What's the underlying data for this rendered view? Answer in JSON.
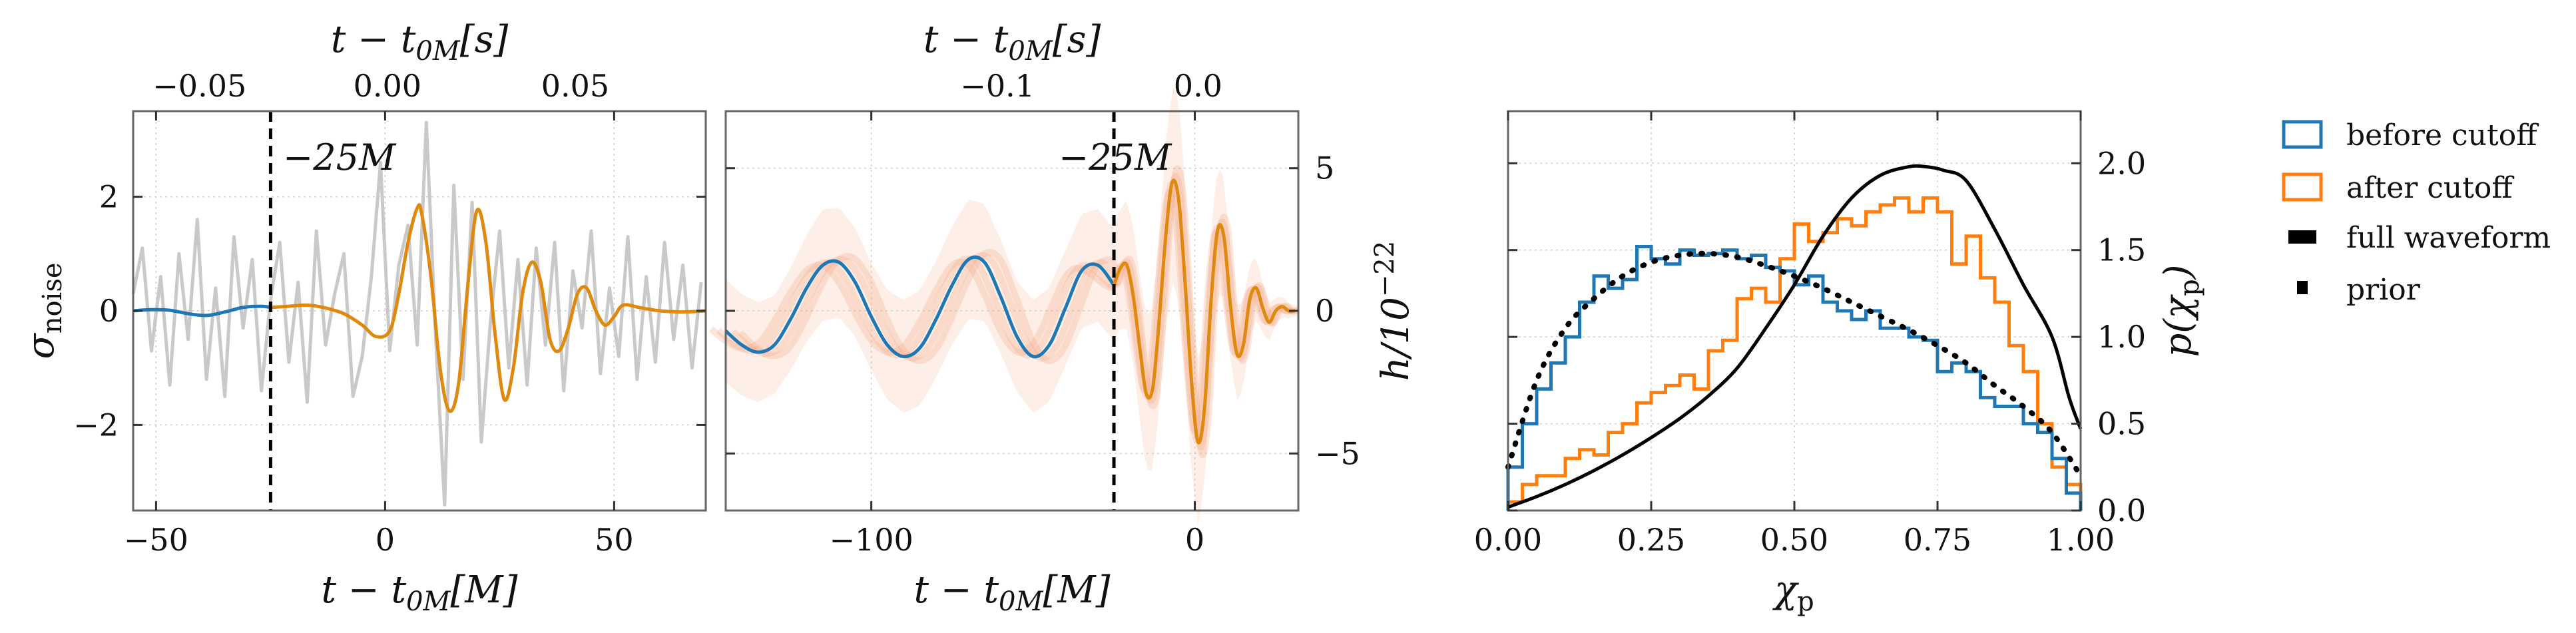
{
  "colors": {
    "before": "#1f77b4",
    "after": "#ff7f0e",
    "after_dark": "#df8a0f",
    "noise": "#c9c9c9",
    "posterior": "#f4a582",
    "full": "#000000",
    "prior": "#000000",
    "grid": "#cfcfcf"
  },
  "legend": {
    "before_label": "before cutoff",
    "after_label": "after cutoff",
    "full_label": "full waveform",
    "prior_label": "prior"
  },
  "panels": {
    "left": {
      "xlabel_main": "t − t",
      "xlabel_sub": "0M",
      "xlabel_unit": "[M]",
      "toplabel_main": "t − t",
      "toplabel_sub": "0M",
      "toplabel_unit": "[s]",
      "ylabel_main": "σ",
      "ylabel_sub": "noise",
      "annotation": "−25M",
      "xticks": [
        "−50",
        "0",
        "50"
      ],
      "yticks": [
        "−2",
        "0",
        "2"
      ],
      "topticks": [
        "−0.05",
        "0.00",
        "0.05"
      ]
    },
    "middle": {
      "xlabel_main": "t − t",
      "xlabel_sub": "0M",
      "xlabel_unit": "[M]",
      "toplabel_main": "t − t",
      "toplabel_sub": "0M",
      "toplabel_unit": "[s]",
      "ylabel_main": "h/10",
      "ylabel_sup": "−22",
      "annotation": "−25M",
      "xticks": [
        "−100",
        "0"
      ],
      "yticks": [
        "−5",
        "0",
        "5"
      ],
      "topticks": [
        "−0.1",
        "0.0"
      ]
    },
    "right": {
      "xlabel_main": "χ",
      "xlabel_sub": "p",
      "ylabel_main": "p(χ",
      "ylabel_sub": "p",
      "ylabel_end": ")",
      "xticks": [
        "0.00",
        "0.25",
        "0.50",
        "0.75",
        "1.00"
      ],
      "yticks": [
        "0.0",
        "0.5",
        "1.0",
        "1.5",
        "2.0"
      ]
    }
  },
  "chart_data": [
    {
      "type": "line",
      "xlim": [
        -55,
        70
      ],
      "ylim": [
        -3.5,
        3.5
      ],
      "top_axis": {
        "ticks_M": [
          -40.5,
          0.5,
          41.5
        ],
        "labels_s": [
          -0.05,
          0.0,
          0.05
        ]
      },
      "cutoff_x": -25,
      "grid": true,
      "series": [
        {
          "key": "noise",
          "x": [
            -55,
            -53,
            -51,
            -49,
            -47,
            -45,
            -43,
            -41,
            -39,
            -37,
            -35,
            -33,
            -31,
            -29,
            -27,
            -25,
            -23,
            -21,
            -19,
            -17,
            -15,
            -13,
            -11,
            -9,
            -7,
            -5,
            -3,
            -1,
            1,
            3,
            5,
            7,
            9,
            11,
            13,
            15,
            17,
            19,
            21,
            23,
            25,
            27,
            29,
            31,
            33,
            35,
            37,
            39,
            41,
            43,
            45,
            47,
            49,
            51,
            53,
            55,
            57,
            59,
            61,
            63,
            65,
            67,
            69
          ],
          "values": [
            0.3,
            1.1,
            -0.7,
            0.6,
            -1.3,
            1.0,
            -0.5,
            1.6,
            -1.2,
            0.4,
            -1.5,
            1.3,
            -0.3,
            0.9,
            -1.4,
            0.2,
            1.2,
            -0.9,
            0.5,
            -1.6,
            1.4,
            -0.6,
            0.3,
            1.0,
            -1.5,
            -0.8,
            0.6,
            2.6,
            -0.7,
            0.8,
            1.5,
            -0.6,
            3.3,
            -0.4,
            -3.4,
            2.2,
            -1.2,
            1.9,
            -2.3,
            -0.2,
            1.4,
            -1.0,
            0.9,
            -1.3,
            1.1,
            -0.6,
            1.2,
            -1.4,
            0.7,
            -0.3,
            1.4,
            -1.1,
            0.4,
            -0.8,
            1.3,
            -1.2,
            0.6,
            -0.9,
            1.2,
            -0.5,
            0.8,
            -1.0,
            0.5
          ]
        },
        {
          "key": "before",
          "x": [
            -55,
            -51,
            -47,
            -43,
            -39,
            -35,
            -31,
            -27,
            -25
          ],
          "values": [
            0.0,
            0.02,
            0.01,
            -0.05,
            -0.08,
            -0.02,
            0.06,
            0.08,
            0.06
          ]
        },
        {
          "key": "after",
          "x": [
            -25,
            -21,
            -17,
            -13,
            -9,
            -5,
            -2,
            1,
            3,
            5,
            7,
            8,
            10,
            12,
            14,
            16,
            18,
            20,
            22,
            24,
            26,
            28,
            30,
            32,
            34,
            36,
            38,
            40,
            42,
            44,
            46,
            48,
            50,
            52,
            56,
            60,
            65,
            70
          ],
          "values": [
            0.06,
            0.08,
            0.1,
            0.05,
            -0.05,
            -0.25,
            -0.45,
            -0.35,
            0.3,
            1.2,
            1.8,
            1.7,
            0.6,
            -1.0,
            -1.75,
            -1.3,
            0.4,
            1.75,
            1.2,
            -0.4,
            -1.55,
            -1.0,
            0.3,
            0.85,
            0.5,
            -0.5,
            -0.7,
            -0.3,
            0.3,
            0.4,
            0.0,
            -0.25,
            -0.1,
            0.1,
            0.05,
            0.0,
            -0.02,
            0.0
          ]
        }
      ]
    },
    {
      "type": "line",
      "xlim": [
        -145,
        32
      ],
      "ylim": [
        -7,
        7
      ],
      "top_axis": {
        "ticks_M": [
          -61,
          1
        ],
        "labels_s": [
          -0.1,
          0.0
        ]
      },
      "cutoff_x": -25,
      "grid": true,
      "series": [
        {
          "key": "before",
          "x": [
            -145,
            -140,
            -135,
            -130,
            -125,
            -120,
            -115,
            -110,
            -105,
            -100,
            -95,
            -90,
            -85,
            -80,
            -75,
            -70,
            -65,
            -60,
            -55,
            -50,
            -45,
            -40,
            -35,
            -30,
            -25
          ],
          "values": [
            -0.7,
            -1.2,
            -1.45,
            -1.2,
            -0.3,
            0.8,
            1.6,
            1.7,
            1.0,
            -0.2,
            -1.2,
            -1.6,
            -1.3,
            -0.3,
            0.9,
            1.8,
            1.7,
            0.5,
            -0.9,
            -1.6,
            -1.2,
            0.1,
            1.4,
            1.6,
            0.9
          ]
        },
        {
          "key": "after",
          "x": [
            -25,
            -23,
            -21,
            -19,
            -17,
            -15,
            -13,
            -11,
            -9,
            -7,
            -5,
            -3,
            -1,
            1,
            3,
            5,
            7,
            9,
            11,
            13,
            15,
            17,
            19,
            21,
            23,
            25,
            27,
            29,
            31
          ],
          "values": [
            0.9,
            1.5,
            1.6,
            0.5,
            -1.3,
            -2.9,
            -2.7,
            -0.3,
            2.6,
            4.5,
            3.9,
            1.0,
            -2.5,
            -4.6,
            -3.4,
            0.3,
            2.8,
            2.6,
            0.2,
            -1.5,
            -1.2,
            0.4,
            0.8,
            0.1,
            -0.4,
            0.0,
            0.15,
            0.0,
            0.0
          ]
        },
        {
          "key": "posterior_envelope",
          "x": [
            -145,
            -130,
            -115,
            -100,
            -85,
            -70,
            -55,
            -40,
            -25,
            -15,
            -5,
            5,
            15,
            25,
            32
          ],
          "values": [
            2.4,
            2.3,
            2.6,
            2.5,
            2.7,
            2.8,
            2.6,
            2.7,
            2.6,
            3.6,
            4.8,
            3.3,
            2.0,
            0.6,
            0.2
          ]
        }
      ]
    },
    {
      "type": "bar",
      "xlim": [
        0.0,
        1.0
      ],
      "ylim": [
        0.0,
        2.3
      ],
      "xlabel": "χp",
      "ylabel": "p(χp)",
      "bin_width": 0.025,
      "series": [
        {
          "name": "before cutoff",
          "key": "before",
          "values": [
            0.25,
            0.5,
            0.7,
            0.85,
            1.0,
            1.2,
            1.35,
            1.28,
            1.33,
            1.52,
            1.45,
            1.42,
            1.5,
            1.47,
            1.48,
            1.5,
            1.45,
            1.47,
            1.4,
            1.38,
            1.3,
            1.35,
            1.2,
            1.15,
            1.1,
            1.15,
            1.05,
            1.05,
            1.0,
            0.98,
            0.8,
            0.85,
            0.8,
            0.65,
            0.6,
            0.6,
            0.5,
            0.45,
            0.3,
            0.1
          ]
        },
        {
          "name": "after cutoff",
          "key": "after",
          "values": [
            0.05,
            0.15,
            0.2,
            0.2,
            0.3,
            0.35,
            0.32,
            0.45,
            0.5,
            0.62,
            0.68,
            0.72,
            0.78,
            0.7,
            0.92,
            0.98,
            1.22,
            1.28,
            1.2,
            1.45,
            1.65,
            1.55,
            1.6,
            1.68,
            1.64,
            1.72,
            1.76,
            1.8,
            1.72,
            1.8,
            1.72,
            1.42,
            1.58,
            1.34,
            1.2,
            0.95,
            0.8,
            0.5,
            0.25,
            0.15
          ]
        },
        {
          "name": "full waveform",
          "key": "full",
          "x": [
            0.0,
            0.05,
            0.1,
            0.15,
            0.2,
            0.25,
            0.3,
            0.35,
            0.4,
            0.45,
            0.5,
            0.55,
            0.6,
            0.65,
            0.7,
            0.73,
            0.76,
            0.8,
            0.85,
            0.9,
            0.95,
            0.98,
            1.0
          ],
          "values": [
            0.02,
            0.08,
            0.15,
            0.23,
            0.32,
            0.42,
            0.53,
            0.66,
            0.82,
            1.05,
            1.3,
            1.58,
            1.8,
            1.93,
            1.98,
            1.98,
            1.96,
            1.9,
            1.62,
            1.3,
            1.0,
            0.65,
            0.47
          ]
        },
        {
          "name": "prior",
          "key": "prior",
          "x": [
            0.0,
            0.05,
            0.1,
            0.15,
            0.2,
            0.25,
            0.3,
            0.35,
            0.4,
            0.45,
            0.5,
            0.55,
            0.6,
            0.65,
            0.7,
            0.75,
            0.8,
            0.85,
            0.9,
            0.95,
            1.0
          ],
          "values": [
            0.25,
            0.75,
            1.05,
            1.22,
            1.35,
            1.43,
            1.47,
            1.48,
            1.46,
            1.41,
            1.35,
            1.28,
            1.2,
            1.12,
            1.04,
            0.95,
            0.85,
            0.72,
            0.6,
            0.45,
            0.2
          ]
        }
      ]
    }
  ]
}
